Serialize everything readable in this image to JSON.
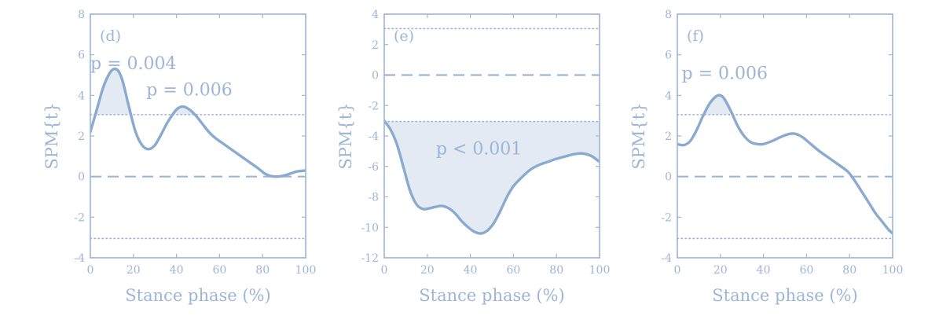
{
  "colors": {
    "axis": "#9db5d6",
    "curve": "#8aaad0",
    "fill": "#e3eaf3",
    "text": "#9db5d6"
  },
  "chart_data": [
    {
      "panel_label": "(d)",
      "type": "line",
      "xlabel": "Stance phase (%)",
      "ylabel": "SPM{t}",
      "xlim": [
        0,
        100
      ],
      "ylim": [
        -4,
        8
      ],
      "xticks": [
        0,
        20,
        40,
        60,
        80,
        100
      ],
      "yticks": [
        -4,
        -2,
        0,
        2,
        4,
        6,
        8
      ],
      "threshold": 3.05,
      "lower_threshold": -3.05,
      "zero_line": 0,
      "series": [
        {
          "x": [
            0,
            3,
            6,
            9,
            11,
            13,
            15,
            18,
            21,
            24,
            27,
            30,
            33,
            36,
            40,
            43,
            46,
            49,
            52,
            55,
            58,
            62,
            66,
            70,
            74,
            78,
            81,
            84,
            87,
            90,
            93,
            96,
            100
          ],
          "y": [
            2.2,
            3.3,
            4.4,
            5.1,
            5.3,
            5.2,
            4.7,
            3.4,
            2.2,
            1.55,
            1.35,
            1.55,
            2.1,
            2.7,
            3.3,
            3.45,
            3.3,
            3.0,
            2.6,
            2.2,
            1.9,
            1.6,
            1.3,
            1.0,
            0.7,
            0.4,
            0.15,
            0.02,
            0.0,
            0.05,
            0.15,
            0.25,
            0.3
          ]
        }
      ],
      "shaded_regions": [
        [
          0,
          20
        ],
        [
          39,
          48
        ]
      ],
      "annotations": [
        {
          "text": "p = 0.004",
          "x": 20,
          "y": 5.3
        },
        {
          "text": "p = 0.006",
          "x": 46,
          "y": 4.0
        }
      ]
    },
    {
      "panel_label": "(e)",
      "type": "line",
      "xlabel": "Stance phase (%)",
      "ylabel": "SPM{t}",
      "xlim": [
        0,
        100
      ],
      "ylim": [
        -12,
        4
      ],
      "xticks": [
        0,
        20,
        40,
        60,
        80,
        100
      ],
      "yticks": [
        -12,
        -10,
        -8,
        -6,
        -4,
        -2,
        0,
        2,
        4
      ],
      "threshold": -3.05,
      "upper_threshold": 3.05,
      "zero_line": 0,
      "series": [
        {
          "x": [
            0,
            3,
            6,
            9,
            12,
            15,
            18,
            21,
            24,
            27,
            30,
            33,
            36,
            39,
            42,
            45,
            48,
            51,
            54,
            57,
            60,
            64,
            68,
            72,
            76,
            80,
            84,
            88,
            92,
            96,
            100
          ],
          "y": [
            -3.0,
            -3.6,
            -4.6,
            -6.1,
            -7.6,
            -8.5,
            -8.8,
            -8.75,
            -8.65,
            -8.6,
            -8.75,
            -9.1,
            -9.6,
            -10.0,
            -10.3,
            -10.4,
            -10.2,
            -9.7,
            -8.9,
            -8.0,
            -7.3,
            -6.7,
            -6.2,
            -5.9,
            -5.7,
            -5.5,
            -5.35,
            -5.2,
            -5.15,
            -5.3,
            -5.7
          ]
        }
      ],
      "shaded_regions": [
        [
          0,
          100
        ]
      ],
      "annotations": [
        {
          "text": "p < 0.001",
          "x": 44,
          "y": -5.2
        }
      ]
    },
    {
      "panel_label": "(f)",
      "type": "line",
      "xlabel": "Stance phase (%)",
      "ylabel": "SPM{t}",
      "xlim": [
        0,
        100
      ],
      "ylim": [
        -4,
        8
      ],
      "xticks": [
        0,
        20,
        40,
        60,
        80,
        100
      ],
      "yticks": [
        -4,
        -2,
        0,
        2,
        4,
        6,
        8
      ],
      "threshold": 3.05,
      "lower_threshold": -3.05,
      "zero_line": 0,
      "series": [
        {
          "x": [
            0,
            3,
            6,
            9,
            12,
            15,
            18,
            20,
            22,
            25,
            28,
            31,
            34,
            37,
            40,
            44,
            48,
            52,
            55,
            58,
            62,
            66,
            70,
            74,
            78,
            80,
            83,
            86,
            89,
            92,
            95,
            98,
            100
          ],
          "y": [
            1.6,
            1.55,
            1.75,
            2.3,
            3.0,
            3.6,
            3.95,
            4.0,
            3.8,
            3.2,
            2.5,
            2.0,
            1.7,
            1.6,
            1.6,
            1.75,
            1.95,
            2.1,
            2.1,
            1.95,
            1.6,
            1.25,
            0.95,
            0.65,
            0.35,
            0.15,
            -0.3,
            -0.8,
            -1.3,
            -1.8,
            -2.2,
            -2.6,
            -2.8
          ]
        }
      ],
      "shaded_regions": [
        [
          11,
          27
        ]
      ],
      "annotations": [
        {
          "text": "p = 0.006",
          "x": 22,
          "y": 4.8
        }
      ]
    }
  ]
}
